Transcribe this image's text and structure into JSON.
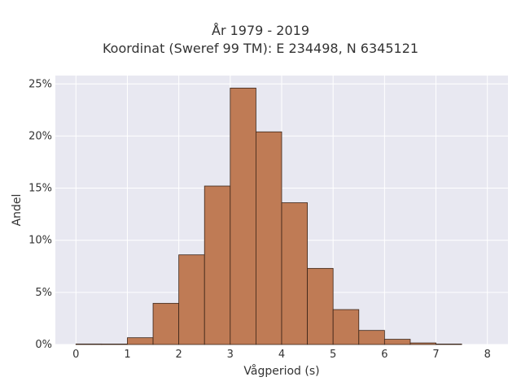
{
  "chart_data": {
    "type": "bar",
    "title": "År 1979 - 2019",
    "subtitle": "Koordinat (Sweref 99 TM): E 234498, N 6345121",
    "xlabel": "Vågperiod (s)",
    "ylabel": "Andel",
    "xlim": [
      -0.4,
      8.4
    ],
    "ylim": [
      0,
      25.8
    ],
    "x_ticks": [
      0,
      1,
      2,
      3,
      4,
      5,
      6,
      7,
      8
    ],
    "y_ticks": [
      0,
      5,
      10,
      15,
      20,
      25
    ],
    "y_tick_labels": [
      "0%",
      "5%",
      "10%",
      "15%",
      "20%",
      "25%"
    ],
    "bin_width": 0.5,
    "bins": [
      {
        "x0": 0.0,
        "x1": 0.5,
        "value": 0.05
      },
      {
        "x0": 0.5,
        "x1": 1.0,
        "value": 0.0
      },
      {
        "x0": 1.0,
        "x1": 1.5,
        "value": 0.65
      },
      {
        "x0": 1.5,
        "x1": 2.0,
        "value": 3.95
      },
      {
        "x0": 2.0,
        "x1": 2.5,
        "value": 8.6
      },
      {
        "x0": 2.5,
        "x1": 3.0,
        "value": 15.2
      },
      {
        "x0": 3.0,
        "x1": 3.5,
        "value": 24.6
      },
      {
        "x0": 3.5,
        "x1": 4.0,
        "value": 20.4
      },
      {
        "x0": 4.0,
        "x1": 4.5,
        "value": 13.6
      },
      {
        "x0": 4.5,
        "x1": 5.0,
        "value": 7.3
      },
      {
        "x0": 5.0,
        "x1": 5.5,
        "value": 3.35
      },
      {
        "x0": 5.5,
        "x1": 6.0,
        "value": 1.35
      },
      {
        "x0": 6.0,
        "x1": 6.5,
        "value": 0.5
      },
      {
        "x0": 6.5,
        "x1": 7.0,
        "value": 0.15
      },
      {
        "x0": 7.0,
        "x1": 7.5,
        "value": 0.04
      }
    ],
    "grid": true,
    "colors": {
      "bar_fill": "#bf7b55",
      "bar_stroke": "#3a2418",
      "plot_bg": "#e8e8f1",
      "grid": "#ffffff",
      "text": "#333333"
    }
  }
}
